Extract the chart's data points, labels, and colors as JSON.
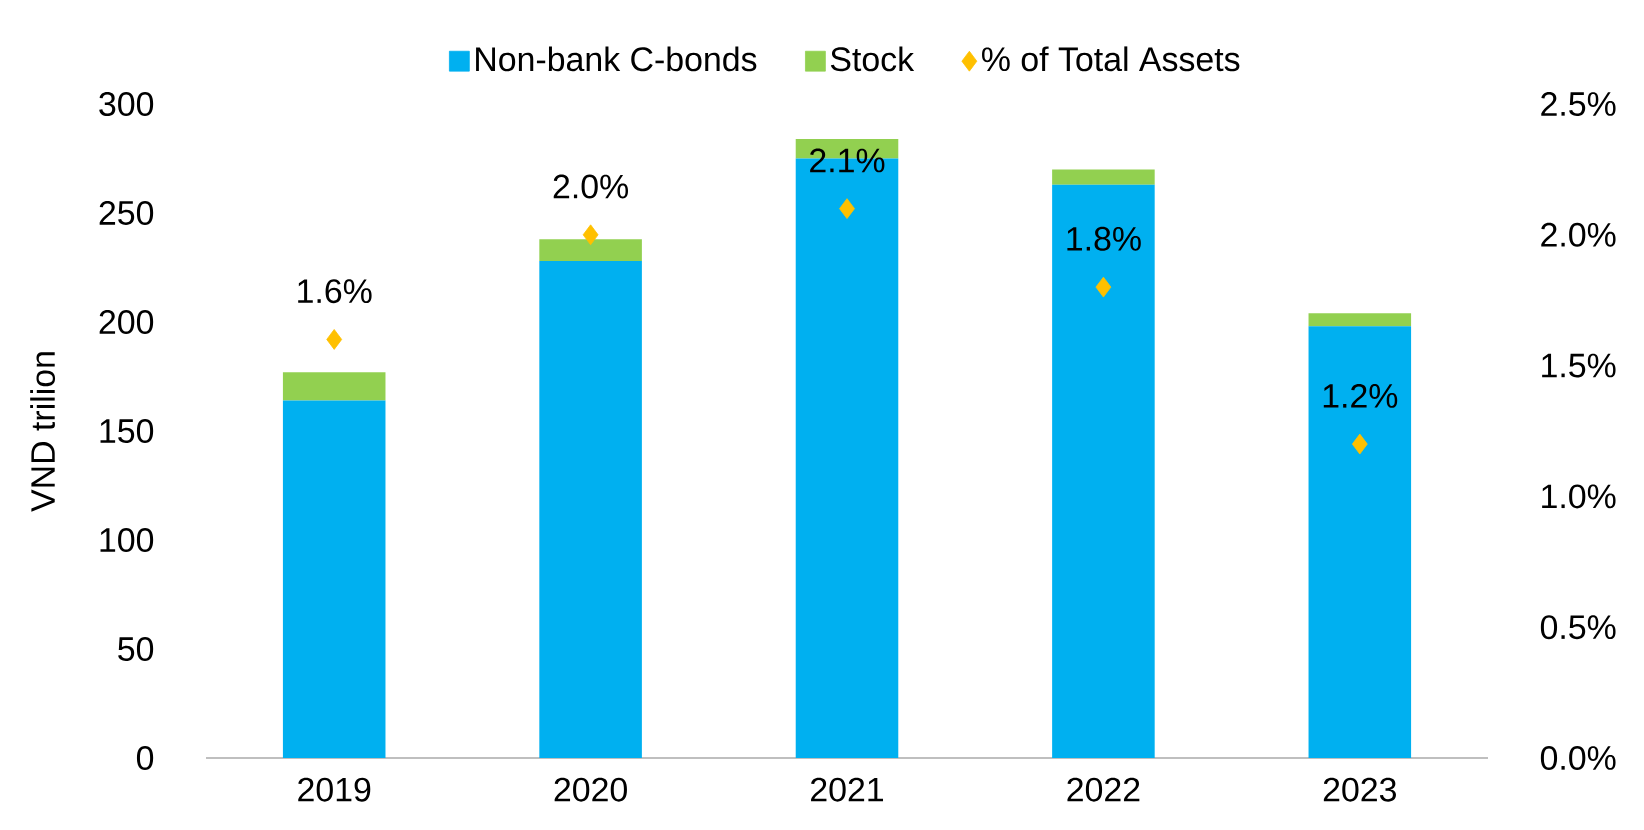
{
  "chart_data": {
    "type": "bar",
    "stacked": true,
    "categories": [
      "2019",
      "2020",
      "2021",
      "2022",
      "2023"
    ],
    "ylabel": "VND trilion",
    "ylim": [
      0,
      300
    ],
    "yticks": [
      0,
      50,
      100,
      150,
      200,
      250,
      300
    ],
    "y2lim": [
      0,
      2.5
    ],
    "y2ticks": [
      {
        "value": 0,
        "label": "0.0%"
      },
      {
        "value": 0.5,
        "label": "0.5%"
      },
      {
        "value": 1.0,
        "label": "1.0%"
      },
      {
        "value": 1.5,
        "label": "1.5%"
      },
      {
        "value": 2.0,
        "label": "2.0%"
      },
      {
        "value": 2.5,
        "label": "2.5%"
      }
    ],
    "legend": "top",
    "series": [
      {
        "name": "Non-bank C-bonds",
        "color": "#00b0f0",
        "values": [
          164,
          228,
          275,
          263,
          198
        ]
      },
      {
        "name": "Stock",
        "color": "#92d050",
        "values": [
          13,
          10,
          9,
          7,
          6
        ]
      },
      {
        "name": "% of Total Assets",
        "type": "scatter",
        "axis": "y2",
        "marker": "diamond",
        "color": "#ffc000",
        "values": [
          1.6,
          2.0,
          2.1,
          1.8,
          1.2
        ],
        "value_labels": [
          "1.6%",
          "2.0%",
          "2.1%",
          "1.8%",
          "1.2%"
        ]
      }
    ]
  }
}
